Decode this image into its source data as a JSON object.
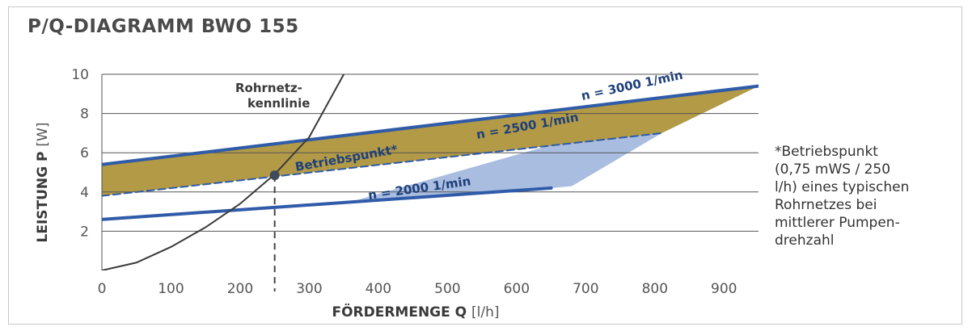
{
  "title": "P/Q-DIAGRAMM BWO 155",
  "note": [
    "*Betriebspunkt",
    "(0,75 mWS / 250",
    "l/h) eines typischen",
    "Rohrnetzes bei",
    "mittlerer Pumpen-",
    "drehzahl"
  ],
  "colors": {
    "curve_line": "#2f5ba8",
    "gold_band": "#b29a46",
    "blue_band": "#a9bde0",
    "grid": "#555555",
    "rohrnetz_curve": "#3a3a3a"
  },
  "chart_data": {
    "type": "line",
    "title": "P/Q-DIAGRAMM BWO 155",
    "xlabel_bold": "FÖRDERMENGE Q",
    "xlabel_unit": "[l/h]",
    "ylabel_bold": "LEISTUNG P",
    "ylabel_unit": "[W]",
    "xlim": [
      0,
      950
    ],
    "ylim": [
      0,
      10
    ],
    "x_ticks": [
      0,
      100,
      200,
      300,
      400,
      500,
      600,
      700,
      800,
      900
    ],
    "y_ticks": [
      2,
      4,
      6,
      8,
      10
    ],
    "grid": "horizontal",
    "series": [
      {
        "name": "n = 3000 1/min",
        "x": [
          0,
          950
        ],
        "y": [
          5.4,
          9.4
        ]
      },
      {
        "name": "n = 2500 1/min",
        "x": [
          0,
          810
        ],
        "y": [
          3.8,
          7.0
        ]
      },
      {
        "name": "n = 2000 1/min",
        "x": [
          0,
          650
        ],
        "y": [
          2.6,
          4.2
        ]
      }
    ],
    "rohrnetz_label": [
      "Rohrnetz-",
      "kennlinie"
    ],
    "rohrnetz_curve": {
      "x": [
        0,
        50,
        100,
        150,
        200,
        250,
        300,
        350
      ],
      "y": [
        0,
        0.4,
        1.2,
        2.2,
        3.4,
        4.9,
        6.8,
        10.0
      ]
    },
    "gold_region": {
      "x": [
        0,
        950,
        810,
        0
      ],
      "y": [
        5.4,
        9.4,
        7.0,
        3.8
      ]
    },
    "blue_region": {
      "x": [
        370,
        950,
        810,
        680,
        650
      ],
      "y": [
        3.6,
        9.4,
        7.0,
        4.3,
        4.2
      ]
    },
    "operating_point": {
      "label": "Betriebspunkt*",
      "x": 250,
      "y": 4.85
    }
  }
}
